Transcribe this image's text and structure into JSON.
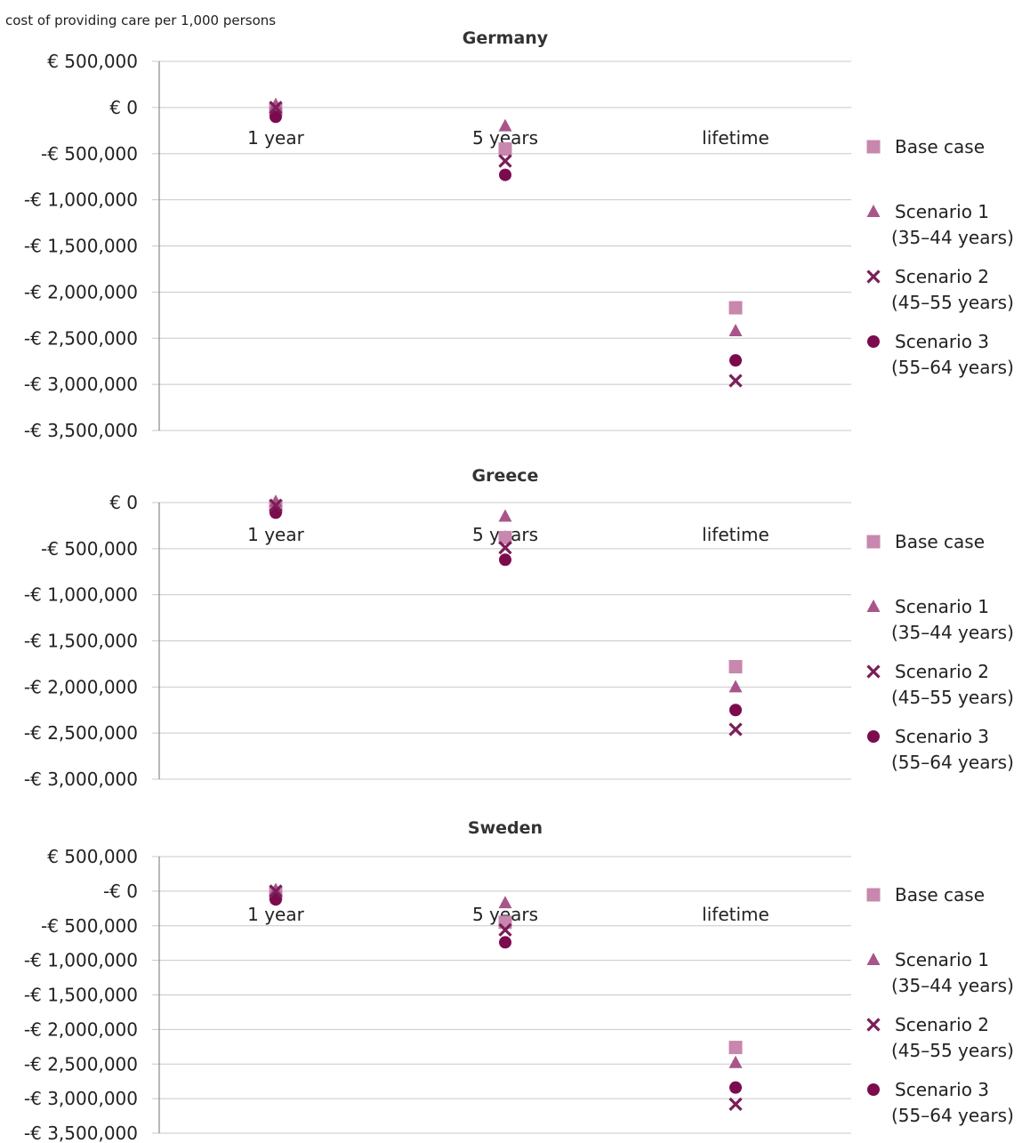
{
  "header": {
    "ylabel": "cost of providing care per 1,000 persons"
  },
  "colors": {
    "base_case": "#c887ac",
    "scenario1": "#a8558a",
    "scenario2": "#7a1d58",
    "scenario3": "#7c0b4e",
    "grid": "#c8c8c8",
    "axis": "#888888"
  },
  "chart_data": [
    {
      "type": "scatter",
      "title": "Germany",
      "xlabel": "",
      "ylabel": "cost of providing care per 1,000 persons",
      "categories": [
        "1 year",
        "5 years",
        "lifetime"
      ],
      "ylim": [
        -3500000,
        500000
      ],
      "yticks": [
        500000,
        0,
        -500000,
        -1000000,
        -1500000,
        -2000000,
        -2500000,
        -3000000,
        -3500000
      ],
      "ytick_labels": [
        "€ 500,000",
        "€ 0",
        "-€ 500,000",
        "-€ 1,000,000",
        "-€ 1,500,000",
        "-€ 2,000,000",
        "-€ 2,500,000",
        "-€ 3,000,000",
        "-€ 3,500,000"
      ],
      "grid": true,
      "legend_position": "right",
      "series": [
        {
          "name": "Base case",
          "legend": [
            "Base case"
          ],
          "marker": "square",
          "values": [
            -20000,
            -450000,
            -2170000
          ]
        },
        {
          "name": "Scenario 1 (35–44 years)",
          "legend": [
            "Scenario 1",
            "(35–44 years)"
          ],
          "marker": "triangle",
          "values": [
            30000,
            -200000,
            -2420000
          ]
        },
        {
          "name": "Scenario 2 (45–55 years)",
          "legend": [
            "Scenario 2",
            "(45–55 years)"
          ],
          "marker": "cross",
          "values": [
            0,
            -580000,
            -2960000
          ]
        },
        {
          "name": "Scenario 3 (55–64 years)",
          "legend": [
            "Scenario 3",
            "(55–64 years)"
          ],
          "marker": "circle",
          "values": [
            -100000,
            -730000,
            -2740000
          ]
        }
      ]
    },
    {
      "type": "scatter",
      "title": "Greece",
      "xlabel": "",
      "ylabel": "",
      "categories": [
        "1 year",
        "5 years",
        "lifetime"
      ],
      "ylim": [
        -3000000,
        0
      ],
      "yticks": [
        0,
        -500000,
        -1000000,
        -1500000,
        -2000000,
        -2500000,
        -3000000
      ],
      "ytick_labels": [
        "€ 0",
        "-€ 500,000",
        "-€ 1,000,000",
        "-€ 1,500,000",
        "-€ 2,000,000",
        "-€ 2,500,000",
        "-€ 3,000,000"
      ],
      "grid": true,
      "legend_position": "right",
      "series": [
        {
          "name": "Base case",
          "legend": [
            "Base case"
          ],
          "marker": "square",
          "values": [
            -40000,
            -380000,
            -1780000
          ]
        },
        {
          "name": "Scenario 1 (35–44 years)",
          "legend": [
            "Scenario 1",
            "(35–44 years)"
          ],
          "marker": "triangle",
          "values": [
            10000,
            -150000,
            -2000000
          ]
        },
        {
          "name": "Scenario 2 (45–55 years)",
          "legend": [
            "Scenario 2",
            "(45–55 years)"
          ],
          "marker": "cross",
          "values": [
            -30000,
            -490000,
            -2460000
          ]
        },
        {
          "name": "Scenario 3 (55–64 years)",
          "legend": [
            "Scenario 3",
            "(55–64 years)"
          ],
          "marker": "circle",
          "values": [
            -110000,
            -620000,
            -2250000
          ]
        }
      ]
    },
    {
      "type": "scatter",
      "title": "Sweden",
      "xlabel": "",
      "ylabel": "",
      "categories": [
        "1 year",
        "5 years",
        "lifetime"
      ],
      "ylim": [
        -3500000,
        500000
      ],
      "yticks": [
        500000,
        0,
        -500000,
        -1000000,
        -1500000,
        -2000000,
        -2500000,
        -3000000,
        -3500000
      ],
      "ytick_labels": [
        "€ 500,000",
        "-€ 0",
        "-€ 500,000",
        "-€ 1,000,000",
        "-€ 1,500,000",
        "-€ 2,000,000",
        "-€ 2,500,000",
        "-€ 3,000,000",
        "-€ 3,500,000"
      ],
      "grid": true,
      "legend_position": "right",
      "series": [
        {
          "name": "Base case",
          "legend": [
            "Base case"
          ],
          "marker": "square",
          "values": [
            -30000,
            -450000,
            -2260000
          ]
        },
        {
          "name": "Scenario 1 (35–44 years)",
          "legend": [
            "Scenario 1",
            "(35–44 years)"
          ],
          "marker": "triangle",
          "values": [
            20000,
            -170000,
            -2480000
          ]
        },
        {
          "name": "Scenario 2 (45–55 years)",
          "legend": [
            "Scenario 2",
            "(45–55 years)"
          ],
          "marker": "cross",
          "values": [
            0,
            -560000,
            -3080000
          ]
        },
        {
          "name": "Scenario 3 (55–64 years)",
          "legend": [
            "Scenario 3",
            "(55–64 years)"
          ],
          "marker": "circle",
          "values": [
            -120000,
            -740000,
            -2840000
          ]
        }
      ]
    }
  ]
}
